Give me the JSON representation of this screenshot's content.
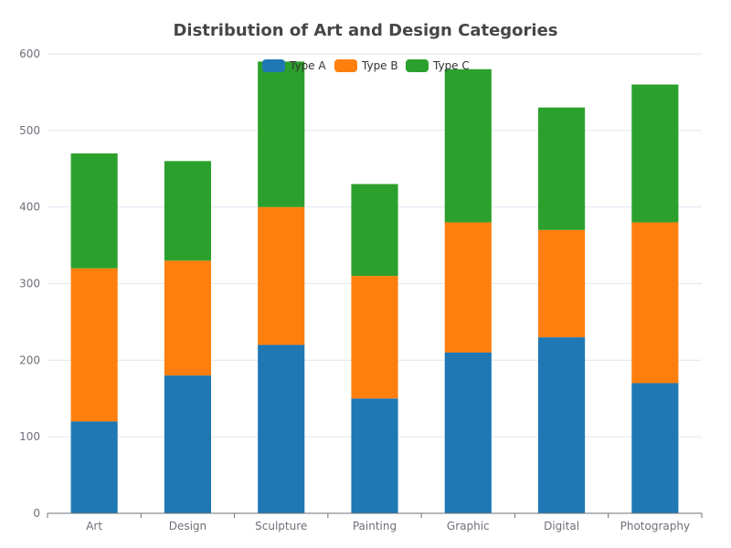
{
  "chart_data": {
    "type": "bar",
    "stacked": true,
    "title": "Distribution of Art and Design Categories",
    "xlabel": "",
    "ylabel": "",
    "categories": [
      "Art",
      "Design",
      "Sculpture",
      "Painting",
      "Graphic",
      "Digital",
      "Photography"
    ],
    "series": [
      {
        "name": "Type A",
        "color": "#1f77b4",
        "values": [
          120,
          180,
          220,
          150,
          210,
          230,
          170
        ]
      },
      {
        "name": "Type B",
        "color": "#ff7f0e",
        "values": [
          200,
          150,
          180,
          160,
          170,
          140,
          210
        ]
      },
      {
        "name": "Type C",
        "color": "#2ca02c",
        "values": [
          150,
          130,
          190,
          120,
          200,
          160,
          180
        ]
      }
    ],
    "ylim": [
      0,
      600
    ],
    "yticks": [
      0,
      100,
      200,
      300,
      400,
      500,
      600
    ],
    "grid": true,
    "legend_position": "top-center"
  }
}
